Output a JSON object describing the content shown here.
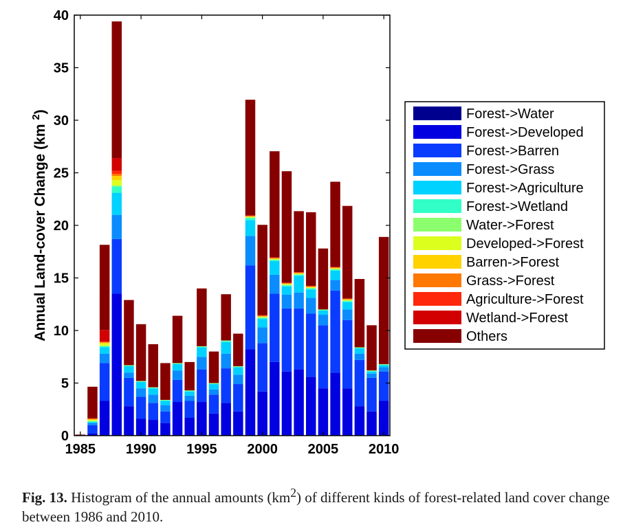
{
  "chart_data": {
    "type": "bar",
    "stacked": true,
    "ylabel": "Annual Land-cover Change (km 2)",
    "ylim": [
      0,
      40
    ],
    "xlim": [
      1984.5,
      2010.5
    ],
    "yticks": [
      0,
      5,
      10,
      15,
      20,
      25,
      30,
      35,
      40
    ],
    "xticks": [
      1985,
      1990,
      1995,
      2000,
      2005,
      2010
    ],
    "legend_position": "right",
    "x": [
      1985,
      1986,
      1987,
      1988,
      1989,
      1990,
      1991,
      1992,
      1993,
      1994,
      1995,
      1996,
      1997,
      1998,
      1999,
      2000,
      2001,
      2002,
      2003,
      2004,
      2005,
      2006,
      2007,
      2008,
      2009,
      2010
    ],
    "series": [
      {
        "name": "Forest->Water",
        "color": "#00008f",
        "values": [
          0,
          0,
          0,
          0,
          0,
          0,
          0,
          0,
          0,
          0,
          0,
          0,
          0,
          0,
          0,
          0,
          0,
          0,
          0,
          0,
          0,
          0,
          0,
          0,
          0,
          0
        ]
      },
      {
        "name": "Forest->Developed",
        "color": "#0000e0",
        "values": [
          0,
          0.2,
          3.3,
          13.5,
          2.8,
          1.6,
          1.5,
          1.2,
          3.2,
          1.7,
          3.2,
          2.1,
          3.1,
          2.3,
          8.2,
          4.2,
          7.0,
          6.1,
          6.3,
          5.6,
          4.5,
          6.0,
          4.5,
          2.8,
          2.3,
          3.3
        ]
      },
      {
        "name": "Forest->Barren",
        "color": "#0a3cff",
        "values": [
          0,
          0.8,
          3.6,
          5.2,
          2.7,
          2.1,
          1.6,
          1.1,
          2.1,
          1.6,
          3.1,
          1.8,
          3.3,
          2.6,
          8.0,
          4.6,
          6.5,
          6.0,
          5.8,
          6.0,
          6.0,
          7.8,
          6.5,
          4.4,
          3.2,
          2.8
        ]
      },
      {
        "name": "Forest->Grass",
        "color": "#0a8cff",
        "values": [
          0,
          0.2,
          0.9,
          2.3,
          0.5,
          0.8,
          0.8,
          0.6,
          0.9,
          0.5,
          1.2,
          0.5,
          1.4,
          0.9,
          2.8,
          1.5,
          1.8,
          1.3,
          1.5,
          1.5,
          1.0,
          1.0,
          1.0,
          0.6,
          0.4,
          0.4
        ]
      },
      {
        "name": "Forest->Agriculture",
        "color": "#00d2ff",
        "values": [
          0,
          0.1,
          0.6,
          2.1,
          0.6,
          0.6,
          0.6,
          0.4,
          0.6,
          0.4,
          0.9,
          0.5,
          1.1,
          0.7,
          1.5,
          0.8,
          1.3,
          0.8,
          1.6,
          0.8,
          0.4,
          0.9,
          0.7,
          0.5,
          0.2,
          0.2
        ]
      },
      {
        "name": "Forest->Wetland",
        "color": "#32ffc8",
        "values": [
          0,
          0.05,
          0.1,
          0.6,
          0.05,
          0.05,
          0.05,
          0.05,
          0.05,
          0.05,
          0.05,
          0.05,
          0.1,
          0.05,
          0.2,
          0.1,
          0.1,
          0.1,
          0.1,
          0.1,
          0.05,
          0.1,
          0.1,
          0.05,
          0.05,
          0.05
        ]
      },
      {
        "name": "Water->Forest",
        "color": "#8cff6e",
        "values": [
          0,
          0.05,
          0.05,
          0.1,
          0.05,
          0.05,
          0.05,
          0.05,
          0.05,
          0.05,
          0.05,
          0.05,
          0.05,
          0.05,
          0.05,
          0.05,
          0.05,
          0.05,
          0.05,
          0.05,
          0.05,
          0.05,
          0.05,
          0.05,
          0.05,
          0.05
        ]
      },
      {
        "name": "Developed->Forest",
        "color": "#dcff1e",
        "values": [
          0,
          0.1,
          0.2,
          0.5,
          0,
          0,
          0,
          0,
          0,
          0,
          0,
          0,
          0,
          0,
          0.05,
          0.05,
          0.05,
          0.05,
          0.05,
          0.05,
          0,
          0.05,
          0.05,
          0,
          0,
          0
        ]
      },
      {
        "name": "Barren->Forest",
        "color": "#ffd200",
        "values": [
          0,
          0.05,
          0.1,
          0.4,
          0,
          0,
          0,
          0,
          0,
          0,
          0,
          0,
          0,
          0,
          0.05,
          0.05,
          0.05,
          0.05,
          0.05,
          0.05,
          0,
          0.05,
          0.05,
          0,
          0,
          0
        ]
      },
      {
        "name": "Grass->Forest",
        "color": "#ff7800",
        "values": [
          0.05,
          0.05,
          0.05,
          0.2,
          0,
          0,
          0,
          0,
          0,
          0,
          0,
          0,
          0,
          0,
          0.05,
          0.05,
          0.05,
          0.05,
          0.05,
          0.05,
          0,
          0.05,
          0.05,
          0,
          0,
          0
        ]
      },
      {
        "name": "Agriculture->Forest",
        "color": "#ff280a",
        "values": [
          0,
          0.05,
          0.05,
          0.3,
          0,
          0,
          0,
          0,
          0,
          0,
          0,
          0,
          0,
          0,
          0.05,
          0.05,
          0.05,
          0.05,
          0.05,
          0.05,
          0,
          0.05,
          0.05,
          0,
          0,
          0
        ]
      },
      {
        "name": "Wetland->Forest",
        "color": "#d20000",
        "values": [
          0,
          0,
          1.1,
          1.2,
          0,
          0,
          0,
          0,
          0,
          0,
          0,
          0,
          0,
          0,
          0,
          0,
          0,
          0,
          0,
          0,
          0,
          0,
          0,
          0,
          0,
          0
        ]
      },
      {
        "name": "Others",
        "color": "#870000",
        "values": [
          0.05,
          3.0,
          8.1,
          13.0,
          6.2,
          5.4,
          4.1,
          3.5,
          4.5,
          2.7,
          5.5,
          3.0,
          4.4,
          3.1,
          11.0,
          8.6,
          10.1,
          10.6,
          5.8,
          7.0,
          5.8,
          8.1,
          8.8,
          6.5,
          4.3,
          12.1
        ]
      }
    ]
  },
  "caption": {
    "label": "Fig. 13.",
    "text_before": " Histogram of the annual amounts (km",
    "superscript": "2",
    "text_after": ") of different kinds of forest-related land cover change between 1986 and 2010."
  }
}
